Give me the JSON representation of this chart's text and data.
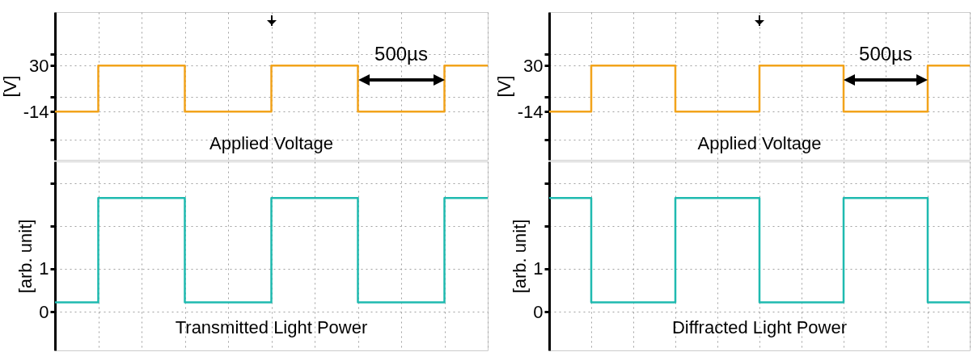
{
  "chart_data": [
    {
      "type": "step",
      "title": "Applied Voltage",
      "ylabel": "[V]",
      "categories": [
        null,
        null,
        null,
        null,
        null,
        null,
        null,
        null,
        null,
        null,
        null
      ],
      "color": "#f2a31b",
      "values": [
        -14,
        30,
        30,
        -14,
        -14,
        30,
        30,
        -14,
        -14,
        30,
        30
      ],
      "ylim": [
        -60,
        81
      ],
      "yticks": [
        {
          "value": -41,
          "label": null
        },
        -14,
        {
          "value": 0,
          "label": null
        },
        30,
        {
          "value": 41,
          "label": null
        }
      ],
      "grid": true,
      "tick_labels": "y",
      "annotations": [
        "500µs"
      ]
    },
    {
      "type": "step",
      "title": "Transmitted Light Power",
      "ylabel": "[arb. unit]",
      "categories": [
        null,
        null,
        null,
        null,
        null,
        null,
        null,
        null,
        null,
        null,
        null
      ],
      "color": "#1fbab0",
      "values": [
        0.22,
        2.65,
        2.65,
        0.22,
        0.22,
        2.65,
        2.65,
        0.22,
        0.22,
        2.65,
        2.65
      ],
      "ylim": [
        -0.9,
        3.5
      ],
      "yticks": [
        0,
        1,
        {
          "value": 2,
          "label": null
        },
        {
          "value": 3,
          "label": null
        }
      ],
      "grid": true,
      "tick_labels": "y"
    },
    {
      "type": "step",
      "title": "Applied Voltage",
      "ylabel": "[V]",
      "categories": [
        null,
        null,
        null,
        null,
        null,
        null,
        null,
        null,
        null,
        null,
        null
      ],
      "color": "#f2a31b",
      "values": [
        -14,
        30,
        30,
        -14,
        -14,
        30,
        30,
        -14,
        -14,
        30,
        30
      ],
      "ylim": [
        -60,
        81
      ],
      "yticks": [
        {
          "value": -41,
          "label": null
        },
        -14,
        {
          "value": 0,
          "label": null
        },
        30,
        {
          "value": 41,
          "label": null
        }
      ],
      "grid": true,
      "tick_labels": "y",
      "annotations": [
        "500µs"
      ]
    },
    {
      "type": "step",
      "title": "Diffracted Light Power",
      "ylabel": "[arb. unit]",
      "categories": [
        null,
        null,
        null,
        null,
        null,
        null,
        null,
        null,
        null,
        null,
        null
      ],
      "color": "#1fbab0",
      "values": [
        2.65,
        0.22,
        0.22,
        2.65,
        2.65,
        0.22,
        0.22,
        2.65,
        2.65,
        0.22,
        0.22
      ],
      "ylim": [
        -0.9,
        3.5
      ],
      "yticks": [
        0,
        1,
        {
          "value": 2,
          "label": null
        },
        {
          "value": 3,
          "label": null
        }
      ],
      "grid": true,
      "tick_labels": "y"
    }
  ]
}
